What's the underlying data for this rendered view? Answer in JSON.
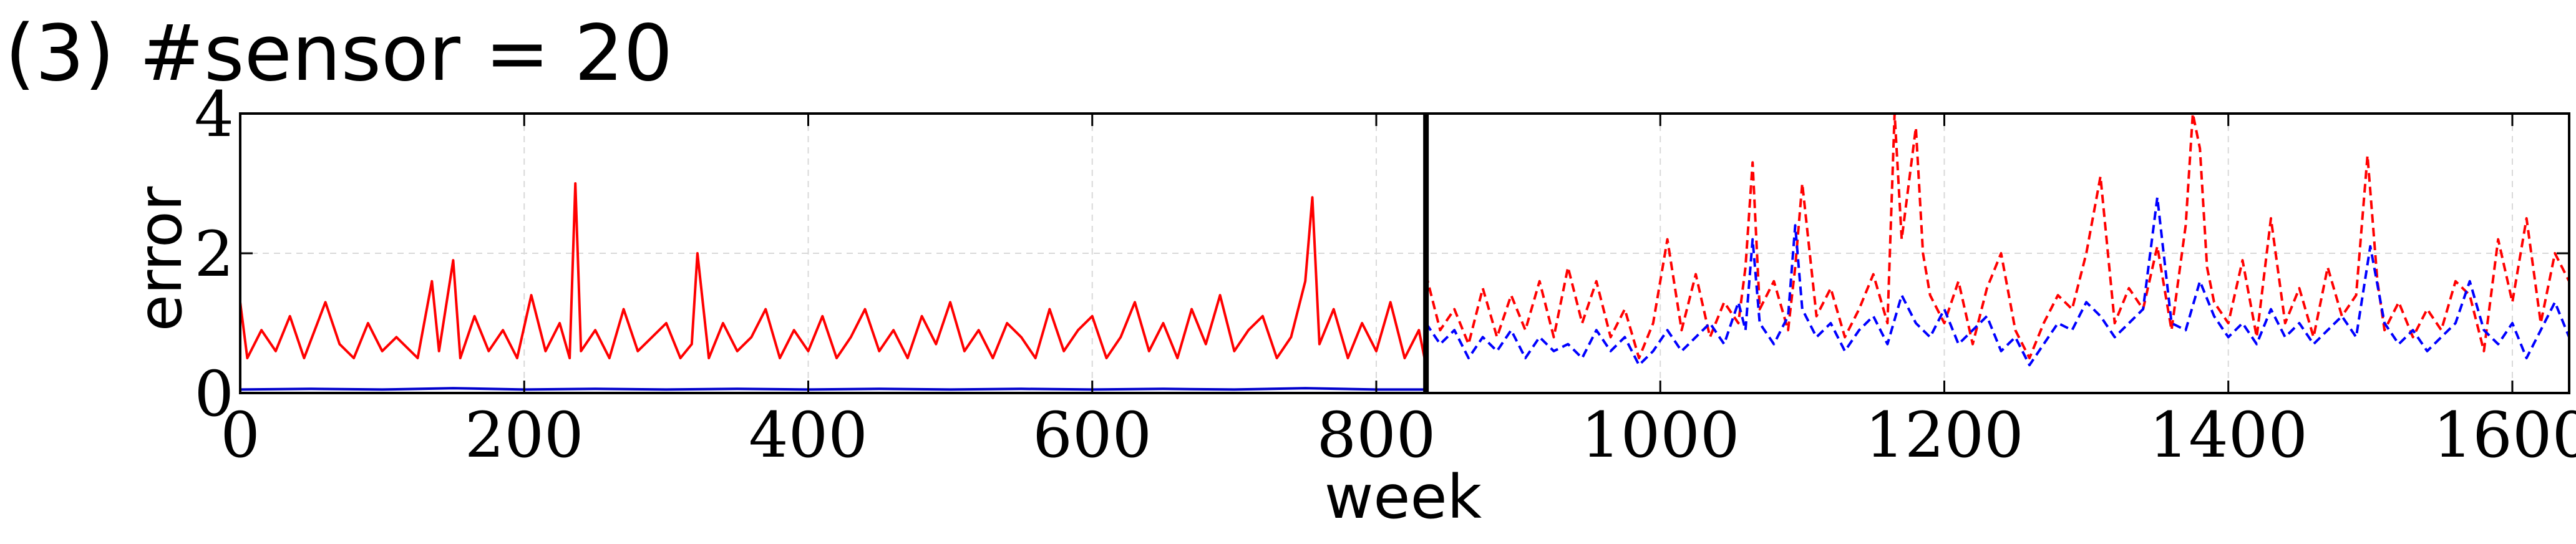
{
  "chart_data": {
    "type": "line",
    "title": "(3) #sensor = 20",
    "xlabel": "week",
    "ylabel": "error",
    "xlim": [
      0,
      1640
    ],
    "ylim": [
      0,
      4
    ],
    "xticks": [
      0,
      200,
      400,
      600,
      800,
      1000,
      1200,
      1400,
      1600
    ],
    "yticks": [
      0,
      2,
      4
    ],
    "grid": true,
    "divider_x": 835,
    "series": [
      {
        "style": "solid",
        "color": "#ff0000",
        "x": [
          0,
          5,
          15,
          25,
          35,
          45,
          60,
          70,
          80,
          90,
          100,
          110,
          125,
          135,
          140,
          150,
          155,
          165,
          175,
          185,
          195,
          205,
          215,
          225,
          232,
          236,
          240,
          250,
          260,
          270,
          280,
          290,
          300,
          310,
          318,
          322,
          330,
          340,
          350,
          360,
          370,
          380,
          390,
          400,
          410,
          420,
          430,
          440,
          450,
          460,
          470,
          480,
          490,
          500,
          510,
          520,
          530,
          540,
          550,
          560,
          570,
          580,
          590,
          600,
          610,
          620,
          630,
          640,
          650,
          660,
          670,
          680,
          690,
          700,
          710,
          720,
          730,
          740,
          750,
          755,
          760,
          770,
          780,
          790,
          800,
          810,
          820,
          830,
          835
        ],
        "y": [
          1.3,
          0.5,
          0.9,
          0.6,
          1.1,
          0.5,
          1.3,
          0.7,
          0.5,
          1.0,
          0.6,
          0.8,
          0.5,
          1.6,
          0.6,
          1.9,
          0.5,
          1.1,
          0.6,
          0.9,
          0.5,
          1.4,
          0.6,
          1.0,
          0.5,
          3.0,
          0.6,
          0.9,
          0.5,
          1.2,
          0.6,
          0.8,
          1.0,
          0.5,
          0.7,
          2.0,
          0.5,
          1.0,
          0.6,
          0.8,
          1.2,
          0.5,
          0.9,
          0.6,
          1.1,
          0.5,
          0.8,
          1.2,
          0.6,
          0.9,
          0.5,
          1.1,
          0.7,
          1.3,
          0.6,
          0.9,
          0.5,
          1.0,
          0.8,
          0.5,
          1.2,
          0.6,
          0.9,
          1.1,
          0.5,
          0.8,
          1.3,
          0.6,
          1.0,
          0.5,
          1.2,
          0.7,
          1.4,
          0.6,
          0.9,
          1.1,
          0.5,
          0.8,
          1.6,
          2.8,
          0.7,
          1.2,
          0.5,
          1.0,
          0.6,
          1.3,
          0.5,
          0.9,
          0.4
        ]
      },
      {
        "style": "solid",
        "color": "#0000cc",
        "x": [
          0,
          50,
          100,
          150,
          200,
          250,
          300,
          350,
          400,
          450,
          500,
          550,
          600,
          650,
          700,
          750,
          800,
          835
        ],
        "y": [
          0.05,
          0.06,
          0.05,
          0.07,
          0.05,
          0.06,
          0.05,
          0.06,
          0.05,
          0.06,
          0.05,
          0.06,
          0.05,
          0.06,
          0.05,
          0.07,
          0.05,
          0.05
        ]
      },
      {
        "style": "dashed",
        "color": "#ff0000",
        "x": [
          835,
          845,
          855,
          865,
          875,
          885,
          895,
          905,
          915,
          925,
          935,
          945,
          955,
          965,
          975,
          985,
          995,
          1005,
          1015,
          1025,
          1035,
          1045,
          1055,
          1060,
          1065,
          1070,
          1080,
          1090,
          1095,
          1100,
          1110,
          1120,
          1130,
          1140,
          1150,
          1160,
          1165,
          1170,
          1180,
          1185,
          1190,
          1200,
          1210,
          1220,
          1230,
          1240,
          1250,
          1260,
          1270,
          1280,
          1290,
          1300,
          1310,
          1320,
          1330,
          1340,
          1350,
          1360,
          1370,
          1375,
          1380,
          1385,
          1390,
          1400,
          1410,
          1420,
          1430,
          1440,
          1450,
          1460,
          1470,
          1480,
          1490,
          1498,
          1505,
          1510,
          1520,
          1530,
          1540,
          1550,
          1560,
          1570,
          1580,
          1590,
          1600,
          1610,
          1620,
          1630,
          1640
        ],
        "y": [
          1.7,
          0.9,
          1.2,
          0.7,
          1.5,
          0.8,
          1.4,
          0.9,
          1.6,
          0.8,
          1.8,
          1.0,
          1.6,
          0.8,
          1.2,
          0.5,
          1.0,
          2.2,
          0.9,
          1.7,
          0.8,
          1.3,
          1.0,
          1.8,
          3.3,
          1.2,
          1.6,
          0.9,
          1.8,
          3.0,
          1.1,
          1.5,
          0.8,
          1.2,
          1.7,
          1.0,
          4.0,
          2.2,
          3.8,
          2.0,
          1.4,
          1.0,
          1.6,
          0.7,
          1.5,
          2.0,
          0.9,
          0.5,
          1.0,
          1.4,
          1.2,
          2.0,
          3.1,
          1.0,
          1.5,
          1.2,
          2.1,
          0.9,
          2.4,
          4.0,
          3.5,
          1.8,
          1.3,
          1.0,
          1.9,
          0.8,
          2.5,
          1.0,
          1.5,
          0.8,
          1.8,
          1.1,
          1.4,
          3.4,
          1.6,
          0.9,
          1.3,
          0.8,
          1.2,
          0.9,
          1.6,
          1.4,
          0.6,
          2.2,
          1.3,
          2.5,
          1.0,
          2.0,
          1.6
        ]
      },
      {
        "style": "dashed",
        "color": "#0000ff",
        "x": [
          835,
          845,
          855,
          865,
          875,
          885,
          895,
          905,
          915,
          925,
          935,
          945,
          955,
          965,
          975,
          985,
          995,
          1005,
          1015,
          1025,
          1035,
          1045,
          1055,
          1060,
          1065,
          1070,
          1080,
          1090,
          1095,
          1100,
          1110,
          1120,
          1130,
          1140,
          1150,
          1160,
          1170,
          1180,
          1190,
          1200,
          1210,
          1220,
          1230,
          1240,
          1250,
          1260,
          1270,
          1280,
          1290,
          1300,
          1310,
          1320,
          1330,
          1340,
          1350,
          1360,
          1370,
          1380,
          1390,
          1400,
          1410,
          1420,
          1430,
          1440,
          1450,
          1460,
          1470,
          1480,
          1490,
          1500,
          1510,
          1520,
          1530,
          1540,
          1550,
          1560,
          1570,
          1580,
          1590,
          1600,
          1610,
          1620,
          1630,
          1640
        ],
        "y": [
          1.0,
          0.7,
          0.9,
          0.5,
          0.8,
          0.6,
          0.9,
          0.5,
          0.8,
          0.6,
          0.7,
          0.5,
          0.9,
          0.6,
          0.8,
          0.4,
          0.6,
          0.9,
          0.6,
          0.8,
          1.0,
          0.7,
          1.3,
          0.9,
          2.2,
          1.0,
          0.7,
          1.1,
          2.4,
          1.2,
          0.8,
          1.0,
          0.6,
          0.9,
          1.1,
          0.7,
          1.4,
          1.0,
          0.8,
          1.2,
          0.7,
          0.9,
          1.1,
          0.6,
          0.8,
          0.4,
          0.7,
          1.0,
          0.9,
          1.3,
          1.1,
          0.8,
          1.0,
          1.2,
          2.8,
          1.0,
          0.9,
          1.6,
          1.1,
          0.8,
          1.0,
          0.7,
          1.2,
          0.8,
          1.0,
          0.7,
          0.9,
          1.1,
          0.8,
          2.1,
          1.0,
          0.7,
          0.9,
          0.6,
          0.8,
          1.0,
          1.6,
          0.9,
          0.7,
          1.0,
          0.5,
          0.9,
          1.3,
          0.8
        ]
      }
    ]
  }
}
